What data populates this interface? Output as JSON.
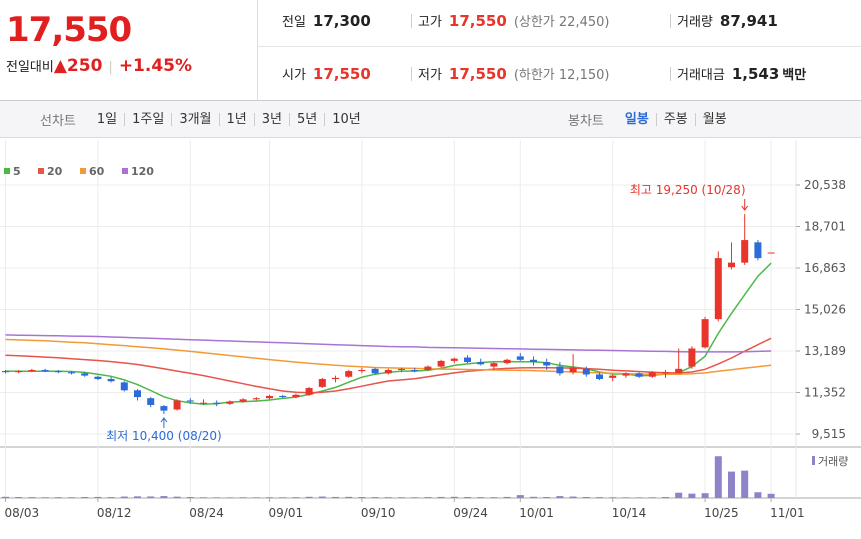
{
  "header": {
    "price": "17,550",
    "change_label": "전일대비",
    "change_arrow": "▲",
    "change": "250",
    "separator": "|",
    "change_rate": "+1.45%"
  },
  "info": [
    {
      "label": "전일",
      "value": "17,300",
      "color": "#222222"
    },
    {
      "label": "고가",
      "value": "17,550",
      "note": "(상한가 22,450)",
      "color": "#e8342b"
    },
    {
      "label": "거래량",
      "value": "87,941",
      "color": "#222222"
    },
    {
      "label": "시가",
      "value": "17,550",
      "color": "#e8342b"
    },
    {
      "label": "저가",
      "value": "17,550",
      "note": "(하한가 12,150)",
      "color": "#e8342b"
    },
    {
      "label": "거래대금",
      "value": "1,543",
      "unit": "백만",
      "color": "#222222"
    }
  ],
  "tabs": {
    "line_label": "선차트",
    "line_periods": [
      "1일",
      "1주일",
      "3개월",
      "1년",
      "3년",
      "5년",
      "10년"
    ],
    "candle_label": "봉차트",
    "candle_periods": [
      "일봉",
      "주봉",
      "월봉"
    ],
    "candle_active": 0
  },
  "chart_data": {
    "type": "candlestick",
    "up_color": "#e8342b",
    "down_color": "#2c6bd8",
    "categories": [
      "08/03",
      null,
      null,
      null,
      null,
      null,
      null,
      "08/12",
      null,
      null,
      null,
      null,
      null,
      null,
      "08/24",
      null,
      null,
      null,
      null,
      null,
      "09/01",
      null,
      null,
      null,
      null,
      null,
      null,
      "09/10",
      null,
      null,
      null,
      null,
      null,
      null,
      "09/24",
      null,
      null,
      null,
      null,
      "10/01",
      null,
      null,
      null,
      null,
      null,
      null,
      "10/14",
      null,
      null,
      null,
      null,
      null,
      null,
      "10/25",
      null,
      null,
      null,
      null,
      "11/01"
    ],
    "open": [
      12300,
      12250,
      12300,
      12350,
      12300,
      12250,
      12200,
      12050,
      11950,
      11800,
      11450,
      11100,
      10750,
      10600,
      11000,
      10900,
      10900,
      10850,
      10950,
      11050,
      11100,
      11200,
      11150,
      11250,
      11600,
      11950,
      12050,
      12300,
      12400,
      12200,
      12350,
      12350,
      12350,
      12500,
      12750,
      12900,
      12700,
      12500,
      12650,
      12950,
      12800,
      12700,
      12500,
      12250,
      12400,
      12150,
      12000,
      12100,
      12200,
      12050,
      12200,
      12200,
      12500,
      13350,
      14600,
      16900,
      17100,
      18000,
      17550
    ],
    "high": [
      12350,
      12350,
      12400,
      12400,
      12350,
      12300,
      12250,
      12100,
      12050,
      11850,
      11500,
      11150,
      10800,
      11050,
      11100,
      11050,
      11000,
      11000,
      11100,
      11150,
      11250,
      11250,
      11300,
      11600,
      12000,
      12100,
      12350,
      12450,
      12450,
      12400,
      12450,
      12450,
      12550,
      12800,
      12900,
      13000,
      12850,
      12700,
      12850,
      13100,
      12950,
      12850,
      12700,
      13050,
      12500,
      12250,
      12150,
      12250,
      12250,
      12300,
      12350,
      13300,
      13400,
      14700,
      17600,
      18000,
      19250,
      18100,
      17550
    ],
    "low": [
      12200,
      12200,
      12250,
      12250,
      12200,
      12150,
      12050,
      11900,
      11800,
      11400,
      11000,
      10700,
      10400,
      10550,
      10850,
      10800,
      10750,
      10800,
      10900,
      11000,
      11050,
      11100,
      11100,
      11200,
      11550,
      11800,
      12000,
      12200,
      12150,
      12150,
      12250,
      12250,
      12300,
      12450,
      12650,
      12650,
      12550,
      12350,
      12600,
      12750,
      12550,
      12350,
      12100,
      12150,
      12050,
      11900,
      11850,
      12000,
      12000,
      12000,
      12000,
      12200,
      12400,
      13300,
      14500,
      16800,
      17000,
      17200,
      17550
    ],
    "close": [
      12250,
      12300,
      12350,
      12300,
      12250,
      12200,
      12100,
      11950,
      11850,
      11450,
      11150,
      10800,
      10550,
      11000,
      10950,
      10900,
      10850,
      10950,
      11050,
      11100,
      11200,
      11150,
      11250,
      11550,
      11950,
      12000,
      12300,
      12350,
      12200,
      12350,
      12400,
      12300,
      12500,
      12750,
      12850,
      12700,
      12600,
      12650,
      12800,
      12800,
      12700,
      12550,
      12200,
      12450,
      12150,
      11950,
      12100,
      12200,
      12050,
      12250,
      12250,
      12400,
      13300,
      14600,
      17300,
      17100,
      18100,
      17300,
      17550
    ],
    "ylim": [
      9028,
      22087
    ],
    "yticks": [
      {
        "value": 20538,
        "label": "20,538"
      },
      {
        "value": 18701,
        "label": "18,701"
      },
      {
        "value": 16863,
        "label": "16,863"
      },
      {
        "value": 15026,
        "label": "15,026"
      },
      {
        "value": 13189,
        "label": "13,189"
      },
      {
        "value": 11352,
        "label": "11,352"
      },
      {
        "value": 9515,
        "label": "9,515"
      }
    ],
    "grid": true,
    "high_label": "최고 19,250 (10/28)",
    "low_label": "최저 10,400 (08/20)",
    "moving_averages": [
      {
        "name": "5",
        "color": "#4cb848",
        "values": [
          12300,
          12290,
          12290,
          12290,
          12290,
          12280,
          12240,
          12160,
          12070,
          11910,
          11700,
          11440,
          11160,
          10990,
          10890,
          10840,
          10850,
          10930,
          10950,
          10970,
          11020,
          11090,
          11150,
          11270,
          11420,
          11580,
          11810,
          12030,
          12160,
          12240,
          12300,
          12300,
          12340,
          12420,
          12550,
          12620,
          12680,
          12710,
          12720,
          12710,
          12710,
          12670,
          12550,
          12480,
          12410,
          12260,
          12170,
          12170,
          12090,
          12110,
          12170,
          12230,
          12500,
          12960,
          13970,
          14860,
          15680,
          16500,
          17080
        ]
      },
      {
        "name": "20",
        "color": "#e8534a",
        "values": [
          13000,
          12980,
          12950,
          12920,
          12890,
          12850,
          12810,
          12770,
          12720,
          12660,
          12590,
          12500,
          12400,
          12300,
          12200,
          12100,
          11980,
          11860,
          11740,
          11620,
          11520,
          11420,
          11360,
          11340,
          11360,
          11420,
          11520,
          11630,
          11750,
          11860,
          11910,
          11960,
          12050,
          12140,
          12220,
          12290,
          12340,
          12390,
          12420,
          12440,
          12450,
          12450,
          12440,
          12430,
          12410,
          12380,
          12340,
          12310,
          12280,
          12250,
          12230,
          12220,
          12260,
          12380,
          12620,
          12880,
          13180,
          13470,
          13750
        ]
      },
      {
        "name": "60",
        "color": "#f29a38",
        "values": [
          13700,
          13680,
          13660,
          13640,
          13610,
          13580,
          13550,
          13510,
          13470,
          13430,
          13380,
          13330,
          13280,
          13230,
          13170,
          13110,
          13050,
          12990,
          12930,
          12870,
          12810,
          12750,
          12700,
          12650,
          12600,
          12560,
          12520,
          12490,
          12460,
          12440,
          12430,
          12420,
          12400,
          12390,
          12380,
          12370,
          12360,
          12350,
          12340,
          12330,
          12320,
          12300,
          12280,
          12260,
          12240,
          12220,
          12200,
          12180,
          12170,
          12160,
          12160,
          12160,
          12180,
          12220,
          12290,
          12360,
          12430,
          12490,
          12560
        ]
      },
      {
        "name": "120",
        "color": "#a774d6",
        "values": [
          13900,
          13890,
          13880,
          13870,
          13860,
          13850,
          13840,
          13830,
          13810,
          13790,
          13770,
          13750,
          13730,
          13710,
          13690,
          13670,
          13650,
          13630,
          13610,
          13590,
          13570,
          13550,
          13530,
          13510,
          13490,
          13470,
          13450,
          13430,
          13410,
          13390,
          13380,
          13370,
          13350,
          13340,
          13330,
          13320,
          13310,
          13300,
          13290,
          13280,
          13270,
          13260,
          13250,
          13240,
          13230,
          13220,
          13210,
          13200,
          13190,
          13180,
          13170,
          13160,
          13150,
          13150,
          13150,
          13150,
          13160,
          13170,
          13190
        ]
      }
    ],
    "volume": {
      "label": "거래량",
      "color": "#8e82c9",
      "ylim": [
        0,
        1000000
      ],
      "values": [
        25000,
        20000,
        18000,
        15000,
        17000,
        16000,
        20000,
        22000,
        19000,
        30000,
        35000,
        32000,
        40000,
        28000,
        20000,
        15000,
        14000,
        13000,
        15000,
        14000,
        16000,
        15000,
        17000,
        25000,
        30000,
        22000,
        24000,
        20000,
        18000,
        17000,
        16000,
        15000,
        18000,
        22000,
        25000,
        20000,
        18000,
        17000,
        22000,
        60000,
        25000,
        20000,
        40000,
        30000,
        20000,
        18000,
        15000,
        14000,
        13000,
        15000,
        20000,
        110000,
        90000,
        100000,
        870000,
        550000,
        570000,
        120000,
        87941
      ]
    }
  }
}
